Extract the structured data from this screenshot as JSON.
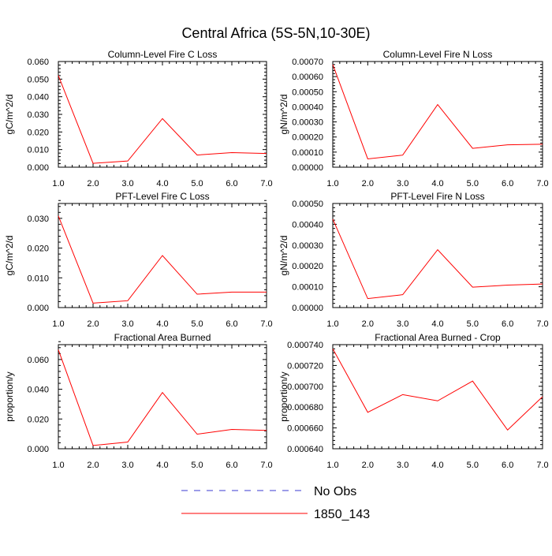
{
  "figure": {
    "title": "Central Africa (5S-5N,10-30E)",
    "legend": [
      {
        "label": "No Obs",
        "color": "#3a3ad0",
        "dash": true
      },
      {
        "label": "1850_143",
        "color": "#ff0000",
        "dash": false
      }
    ]
  },
  "chart_data": [
    {
      "type": "line",
      "title": "Column-Level Fire C Loss",
      "xlabel": "",
      "ylabel": "gC/m^2/d",
      "xlim": [
        1.0,
        7.0
      ],
      "ylim": [
        0.0,
        0.06
      ],
      "xticks": [
        "1.0",
        "2.0",
        "3.0",
        "4.0",
        "5.0",
        "6.0",
        "7.0"
      ],
      "yticks": [
        "0.000",
        "0.010",
        "0.020",
        "0.030",
        "0.040",
        "0.050",
        "0.060"
      ],
      "series": [
        {
          "name": "1850_143",
          "color": "#ff0000",
          "x": [
            1,
            2,
            3,
            4,
            5,
            6,
            7
          ],
          "y": [
            0.052,
            0.0022,
            0.0035,
            0.0276,
            0.0069,
            0.0083,
            0.0078
          ]
        }
      ]
    },
    {
      "type": "line",
      "title": "Column-Level Fire N Loss",
      "xlabel": "",
      "ylabel": "gN/m^2/d",
      "xlim": [
        1.0,
        7.0
      ],
      "ylim": [
        0.0,
        0.0007
      ],
      "xticks": [
        "1.0",
        "2.0",
        "3.0",
        "4.0",
        "5.0",
        "6.0",
        "7.0"
      ],
      "yticks": [
        "0.00000",
        "0.00010",
        "0.00020",
        "0.00030",
        "0.00040",
        "0.00050",
        "0.00060",
        "0.00070"
      ],
      "series": [
        {
          "name": "1850_143",
          "color": "#ff0000",
          "x": [
            1,
            2,
            3,
            4,
            5,
            6,
            7
          ],
          "y": [
            0.00068,
            5.5e-05,
            8e-05,
            0.000415,
            0.000125,
            0.000148,
            0.000152
          ]
        }
      ]
    },
    {
      "type": "line",
      "title": "PFT-Level Fire C Loss",
      "xlabel": "",
      "ylabel": "gC/m^2/d",
      "xlim": [
        1.0,
        7.0
      ],
      "ylim": [
        0.0,
        0.035
      ],
      "xticks": [
        "1.0",
        "2.0",
        "3.0",
        "4.0",
        "5.0",
        "6.0",
        "7.0"
      ],
      "yticks": [
        "0.000",
        "0.010",
        "0.020",
        "0.030"
      ],
      "series": [
        {
          "name": "1850_143",
          "color": "#ff0000",
          "x": [
            1,
            2,
            3,
            4,
            5,
            6,
            7
          ],
          "y": [
            0.0308,
            0.0015,
            0.0023,
            0.0175,
            0.0045,
            0.0052,
            0.0052
          ]
        }
      ]
    },
    {
      "type": "line",
      "title": "PFT-Level Fire N Loss",
      "xlabel": "",
      "ylabel": "gN/m^2/d",
      "xlim": [
        1.0,
        7.0
      ],
      "ylim": [
        0.0,
        0.0005
      ],
      "xticks": [
        "1.0",
        "2.0",
        "3.0",
        "4.0",
        "5.0",
        "6.0",
        "7.0"
      ],
      "yticks": [
        "0.00000",
        "0.00010",
        "0.00020",
        "0.00030",
        "0.00040",
        "0.00050"
      ],
      "series": [
        {
          "name": "1850_143",
          "color": "#ff0000",
          "x": [
            1,
            2,
            3,
            4,
            5,
            6,
            7
          ],
          "y": [
            0.000425,
            4.3e-05,
            6.2e-05,
            0.000278,
            9.8e-05,
            0.000108,
            0.000113
          ]
        }
      ]
    },
    {
      "type": "line",
      "title": "Fractional Area Burned",
      "xlabel": "",
      "ylabel": "proportion/y",
      "xlim": [
        1.0,
        7.0
      ],
      "ylim": [
        0.0,
        0.07
      ],
      "xticks": [
        "1.0",
        "2.0",
        "3.0",
        "4.0",
        "5.0",
        "6.0",
        "7.0"
      ],
      "yticks": [
        "0.000",
        "0.020",
        "0.040",
        "0.060"
      ],
      "series": [
        {
          "name": "1850_143",
          "color": "#ff0000",
          "x": [
            1,
            2,
            3,
            4,
            5,
            6,
            7
          ],
          "y": [
            0.0665,
            0.0022,
            0.0045,
            0.0378,
            0.0098,
            0.013,
            0.0123
          ]
        }
      ]
    },
    {
      "type": "line",
      "title": "Fractional Area Burned - Crop",
      "xlabel": "",
      "ylabel": "proportion/y",
      "xlim": [
        1.0,
        7.0
      ],
      "ylim": [
        0.00064,
        0.00074
      ],
      "xticks": [
        "1.0",
        "2.0",
        "3.0",
        "4.0",
        "5.0",
        "6.0",
        "7.0"
      ],
      "yticks": [
        "0.000640",
        "0.000660",
        "0.000680",
        "0.000700",
        "0.000720",
        "0.000740"
      ],
      "series": [
        {
          "name": "1850_143",
          "color": "#ff0000",
          "x": [
            1,
            2,
            3,
            4,
            5,
            6,
            7
          ],
          "y": [
            0.000736,
            0.000675,
            0.000692,
            0.000686,
            0.000705,
            0.000658,
            0.00069
          ]
        }
      ]
    }
  ]
}
